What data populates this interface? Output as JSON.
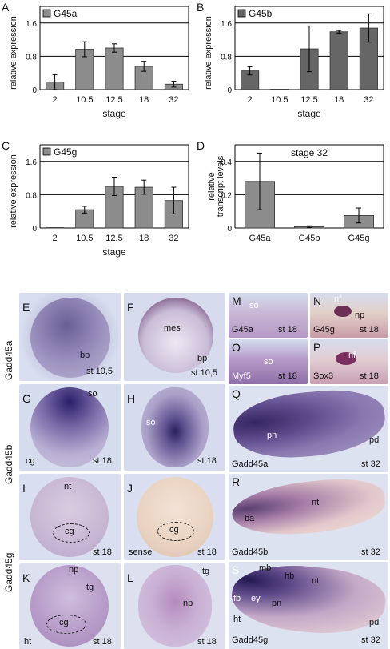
{
  "chart_data": [
    {
      "type": "bar",
      "panel_label": "A",
      "legend": "G45a",
      "xlabel": "stage",
      "ylabel": "relative expression",
      "categories": [
        "2",
        "10.5",
        "12.5",
        "18",
        "32"
      ],
      "values": [
        0.18,
        0.97,
        1.0,
        0.56,
        0.13
      ],
      "errors": [
        0.18,
        0.18,
        0.1,
        0.12,
        0.07
      ],
      "ylim": [
        0,
        2.0
      ],
      "yticks": [
        "0",
        "0.8",
        "1.6"
      ],
      "ytick_values": [
        0,
        0.8,
        1.6
      ],
      "color": "#8c8c8c"
    },
    {
      "type": "bar",
      "panel_label": "B",
      "legend": "G45b",
      "xlabel": "stage",
      "ylabel": "relative expression",
      "categories": [
        "2",
        "10.5",
        "12.5",
        "18",
        "32"
      ],
      "values": [
        0.45,
        0.01,
        0.98,
        1.39,
        1.48
      ],
      "errors": [
        0.1,
        0.0,
        0.55,
        0.03,
        0.34
      ],
      "ylim": [
        0,
        2.0
      ],
      "yticks": [
        "0",
        "0.8",
        "1.6"
      ],
      "ytick_values": [
        0,
        0.8,
        1.6
      ],
      "color": "#666666"
    },
    {
      "type": "bar",
      "panel_label": "C",
      "legend": "G45g",
      "xlabel": "stage",
      "ylabel": "relative expression",
      "categories": [
        "2",
        "10.5",
        "12.5",
        "18",
        "32"
      ],
      "values": [
        0.0,
        0.44,
        1.0,
        0.98,
        0.66
      ],
      "errors": [
        0.0,
        0.08,
        0.22,
        0.17,
        0.32
      ],
      "ylim": [
        0,
        2.0
      ],
      "yticks": [
        "0",
        "0.8",
        "1.6"
      ],
      "ytick_values": [
        0,
        0.8,
        1.6
      ],
      "color": "#8c8c8c"
    },
    {
      "type": "bar",
      "panel_label": "D",
      "legend": "stage 32",
      "xlabel": "",
      "ylabel": "relative transcript levels",
      "categories": [
        "G45a",
        "G45b",
        "G45g"
      ],
      "values": [
        0.28,
        0.008,
        0.075
      ],
      "errors": [
        0.17,
        0.005,
        0.045
      ],
      "ylim": [
        0,
        0.5
      ],
      "yticks": [
        "0",
        "0.2",
        "0.4"
      ],
      "ytick_values": [
        0,
        0.2,
        0.4
      ],
      "color": "#8c8c8c"
    }
  ],
  "micrographs": {
    "group_labels": [
      "Gadd45a",
      "Gadd45b",
      "Gadd45g"
    ],
    "panels": [
      {
        "label": "E",
        "stage": "st 10,5",
        "annotations": [
          "bp"
        ]
      },
      {
        "label": "F",
        "stage": "st 10,5",
        "annotations": [
          "mes",
          "bp"
        ]
      },
      {
        "label": "G",
        "stage": "st 18",
        "annotations": [
          "so",
          "cg"
        ]
      },
      {
        "label": "H",
        "stage": "st 18",
        "annotations": [
          "so"
        ]
      },
      {
        "label": "I",
        "stage": "st 18",
        "annotations": [
          "nt",
          "cg"
        ]
      },
      {
        "label": "J",
        "stage": "st 18",
        "annotations": [
          "sense",
          "cg"
        ]
      },
      {
        "label": "K",
        "stage": "st 18",
        "annotations": [
          "np",
          "tg",
          "cg",
          "ht"
        ]
      },
      {
        "label": "L",
        "stage": "st 18",
        "annotations": [
          "tg",
          "np"
        ]
      },
      {
        "label": "M",
        "stage": "st 18",
        "annotations": [
          "so",
          "G45a"
        ]
      },
      {
        "label": "N",
        "stage": "st 18",
        "annotations": [
          "nf",
          "np",
          "G45g"
        ]
      },
      {
        "label": "O",
        "stage": "st 18",
        "annotations": [
          "so",
          "Myf5"
        ]
      },
      {
        "label": "P",
        "stage": "st 18",
        "annotations": [
          "nf",
          "Sox3"
        ]
      },
      {
        "label": "Q",
        "stage": "st 32",
        "annotations": [
          "pn",
          "pd",
          "Gadd45a"
        ]
      },
      {
        "label": "R",
        "stage": "st 32",
        "annotations": [
          "ba",
          "nt",
          "Gadd45b"
        ]
      },
      {
        "label": "S",
        "stage": "st 32",
        "annotations": [
          "mb",
          "hb",
          "nt",
          "fb",
          "ey",
          "pn",
          "ht",
          "pd",
          "Gadd45g"
        ]
      }
    ]
  }
}
